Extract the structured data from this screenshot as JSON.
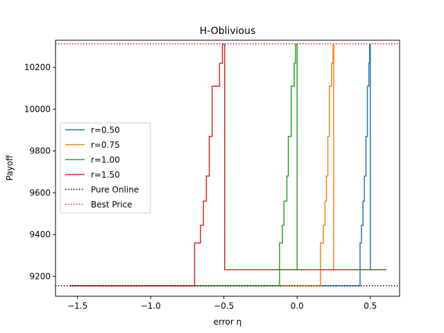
{
  "chart_data": {
    "type": "line",
    "title": "H-Oblivious",
    "xlabel": "error η",
    "ylabel": "Payoff",
    "xlim": [
      -1.65,
      0.7
    ],
    "ylim": [
      9105,
      10330
    ],
    "xticks": [
      -1.5,
      -1.0,
      -0.5,
      0.0,
      0.5
    ],
    "xtick_labels": [
      "−1.5",
      "−1.0",
      "−0.5",
      "0.0",
      "0.5"
    ],
    "yticks": [
      9200,
      9400,
      9600,
      9800,
      10000,
      10200
    ],
    "ytick_labels": [
      "9200",
      "9400",
      "9600",
      "9800",
      "10000",
      "10200"
    ],
    "grid": false,
    "legend_position": "center-left",
    "series": [
      {
        "name": "r=0.50",
        "color": "#1f77b4",
        "style": "solid",
        "x": [
          -1.55,
          0.43,
          0.43,
          0.44,
          0.44,
          0.45,
          0.45,
          0.46,
          0.46,
          0.47,
          0.47,
          0.48,
          0.48,
          0.49,
          0.49,
          0.495,
          0.495,
          0.5,
          0.5,
          0.61
        ],
        "y": [
          9155,
          9155,
          9360,
          9360,
          9445,
          9445,
          9560,
          9560,
          9680,
          9680,
          9870,
          9870,
          10110,
          10110,
          10220,
          10220,
          10310,
          10310,
          9232,
          9232
        ]
      },
      {
        "name": "r=0.75",
        "color": "#ff7f0e",
        "style": "solid",
        "x": [
          -1.55,
          0.16,
          0.16,
          0.18,
          0.18,
          0.19,
          0.19,
          0.2,
          0.2,
          0.21,
          0.21,
          0.22,
          0.22,
          0.235,
          0.235,
          0.245,
          0.245,
          0.25,
          0.25,
          0.61
        ],
        "y": [
          9155,
          9155,
          9360,
          9360,
          9445,
          9445,
          9560,
          9560,
          9680,
          9680,
          9870,
          9870,
          10110,
          10110,
          10220,
          10220,
          10310,
          10310,
          9232,
          9232
        ]
      },
      {
        "name": "r=1.00",
        "color": "#2ca02c",
        "style": "solid",
        "x": [
          -1.55,
          -0.12,
          -0.12,
          -0.1,
          -0.1,
          -0.09,
          -0.09,
          -0.07,
          -0.07,
          -0.06,
          -0.06,
          -0.04,
          -0.04,
          -0.02,
          -0.02,
          -0.01,
          -0.01,
          0.0,
          0.0,
          0.61
        ],
        "y": [
          9155,
          9155,
          9360,
          9360,
          9445,
          9445,
          9560,
          9560,
          9680,
          9680,
          9870,
          9870,
          10110,
          10110,
          10220,
          10220,
          10310,
          10310,
          9232,
          9232
        ]
      },
      {
        "name": "r=1.50",
        "color": "#d62728",
        "style": "solid",
        "x": [
          -1.55,
          -0.7,
          -0.7,
          -0.66,
          -0.66,
          -0.64,
          -0.64,
          -0.62,
          -0.62,
          -0.6,
          -0.6,
          -0.58,
          -0.58,
          -0.53,
          -0.53,
          -0.51,
          -0.51,
          -0.495,
          -0.495,
          0.61
        ],
        "y": [
          9155,
          9155,
          9360,
          9360,
          9445,
          9445,
          9560,
          9560,
          9680,
          9680,
          9870,
          9870,
          10110,
          10110,
          10220,
          10220,
          10310,
          10310,
          9232,
          9232
        ]
      }
    ],
    "reference_lines": [
      {
        "name": "Pure Online",
        "color": "#000000",
        "style": "dotted",
        "y": 9155
      },
      {
        "name": "Best Price",
        "color": "#ff0000",
        "style": "dotted",
        "y": 10313
      }
    ]
  }
}
